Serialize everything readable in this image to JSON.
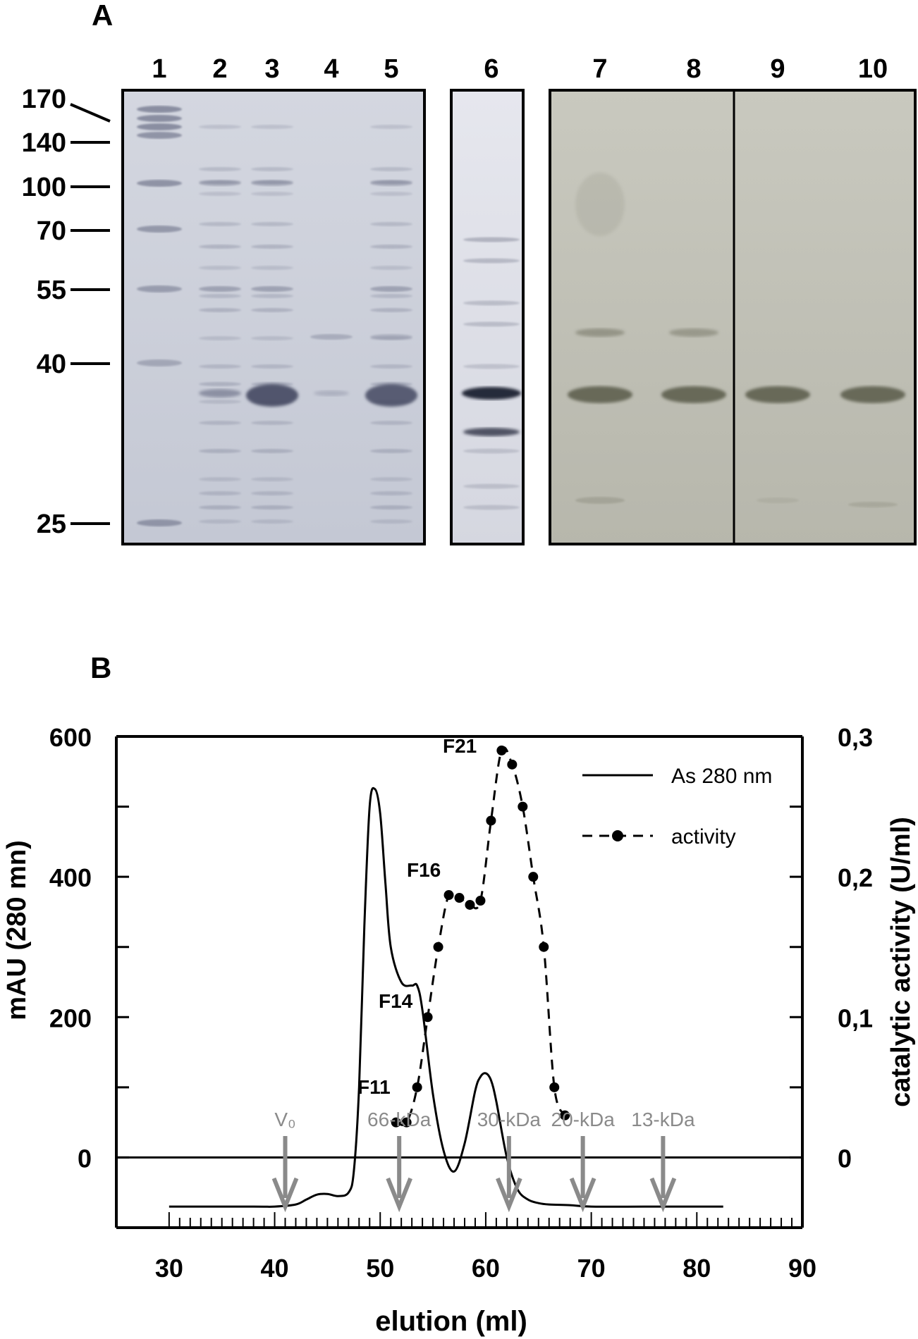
{
  "panels": {
    "a_letter": "A",
    "b_letter": "B"
  },
  "gel": {
    "lanes": [
      "1",
      "2",
      "3",
      "4",
      "5",
      "6",
      "7",
      "8",
      "9",
      "10"
    ],
    "mw_markers": [
      "170",
      "140",
      "100",
      "70",
      "55",
      "40",
      "25"
    ],
    "colors": {
      "gel_blue": "#c8ccd8",
      "gel_green": "#bfbfb2",
      "band_dark": "#4a4f66"
    }
  },
  "chart_data": {
    "type": "line",
    "xlabel": "elution (ml)",
    "ylabel_left": "mAU (280 mn)",
    "ylabel_right": "catalytic activity (U/ml)",
    "xlim": [
      25,
      90
    ],
    "x_ticks": [
      "30",
      "40",
      "50",
      "60",
      "70",
      "80",
      "90"
    ],
    "ylim_left": [
      -100,
      600
    ],
    "y_ticks_left": [
      "600",
      "400",
      "200",
      "0"
    ],
    "ylim_right": [
      -0.05,
      0.3
    ],
    "y_ticks_right": [
      "0,3",
      "0,2",
      "0,1",
      "0"
    ],
    "grid": false,
    "legend_position": "top-right",
    "series": [
      {
        "name": "As 280 nm",
        "axis": "left",
        "style": "solid",
        "x": [
          30,
          38,
          40,
          42,
          43,
          44,
          45,
          46,
          47,
          47.5,
          48,
          48.5,
          49,
          49.5,
          50,
          50.5,
          51,
          52,
          53,
          53.5,
          54,
          55,
          56,
          57,
          58,
          59,
          59.5,
          60,
          60.5,
          61,
          62,
          63,
          64,
          65,
          66,
          68,
          70,
          75,
          80,
          82.5
        ],
        "y": [
          -70,
          -70,
          -70,
          -67,
          -60,
          -53,
          -52,
          -55,
          -50,
          -20,
          100,
          330,
          500,
          525,
          490,
          390,
          300,
          250,
          245,
          245,
          210,
          90,
          10,
          -20,
          20,
          95,
          115,
          120,
          110,
          80,
          0,
          -45,
          -60,
          -65,
          -67,
          -68,
          -70,
          -70,
          -70,
          -70
        ]
      },
      {
        "name": "activity",
        "axis": "right",
        "style": "dashed-markers",
        "x": [
          51.5,
          52.5,
          53.5,
          54.5,
          55.5,
          56.5,
          57.5,
          58.5,
          59.5,
          60.5,
          61.5,
          62.5,
          63.5,
          64.5,
          65.5,
          66.5,
          67.5
        ],
        "y": [
          0.025,
          0.025,
          0.05,
          0.1,
          0.15,
          0.187,
          0.185,
          0.18,
          0.183,
          0.24,
          0.29,
          0.28,
          0.25,
          0.2,
          0.15,
          0.05,
          0.03
        ]
      }
    ],
    "point_labels": [
      "F11",
      "F14",
      "F16",
      "F21"
    ],
    "markers": [
      {
        "label": "V₀",
        "x": 41
      },
      {
        "label": "66-kDa",
        "x": 51.8
      },
      {
        "label": "30-kDa",
        "x": 62.2
      },
      {
        "label": "20-kDa",
        "x": 69.2
      },
      {
        "label": "13-kDa",
        "x": 76.8
      }
    ],
    "colors": {
      "line": "#000000",
      "marker_arrow": "#8a8a8a"
    }
  }
}
